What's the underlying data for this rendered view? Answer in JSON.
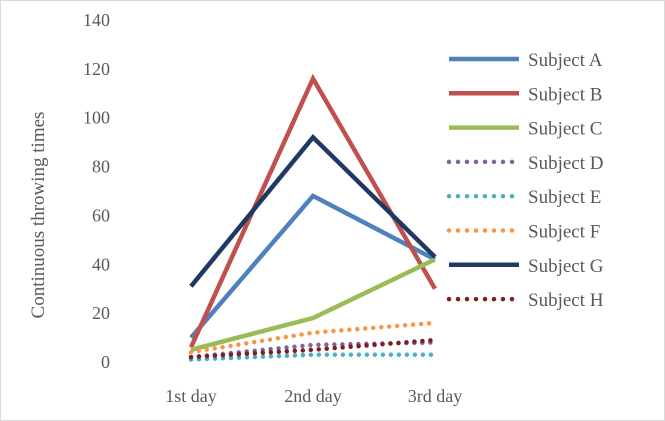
{
  "chart_data": {
    "type": "line",
    "title": "",
    "xlabel": "",
    "ylabel": "Continuous throwing times",
    "categories": [
      "1st day",
      "2nd day",
      "3rd day"
    ],
    "ylim": [
      0,
      140
    ],
    "yticks": [
      0,
      20,
      40,
      60,
      80,
      100,
      120,
      140
    ],
    "grid": false,
    "legend_position": "right",
    "series": [
      {
        "name": "Subject A",
        "values": [
          10,
          68,
          42
        ],
        "color": "#4f81bd",
        "style": "solid"
      },
      {
        "name": "Subject B",
        "values": [
          6,
          116,
          30
        ],
        "color": "#c0504d",
        "style": "solid"
      },
      {
        "name": "Subject C",
        "values": [
          5,
          18,
          42
        ],
        "color": "#9bbb59",
        "style": "solid"
      },
      {
        "name": "Subject D",
        "values": [
          2,
          7,
          8
        ],
        "color": "#8064a2",
        "style": "dotted"
      },
      {
        "name": "Subject E",
        "values": [
          1,
          3,
          3
        ],
        "color": "#4bacc6",
        "style": "dotted"
      },
      {
        "name": "Subject F",
        "values": [
          4,
          12,
          16
        ],
        "color": "#f79646",
        "style": "dotted"
      },
      {
        "name": "Subject G",
        "values": [
          31,
          92,
          43
        ],
        "color": "#1f3864",
        "style": "solid"
      },
      {
        "name": "Subject H",
        "values": [
          2,
          5,
          9
        ],
        "color": "#7b1f1f",
        "style": "dotted"
      }
    ]
  }
}
